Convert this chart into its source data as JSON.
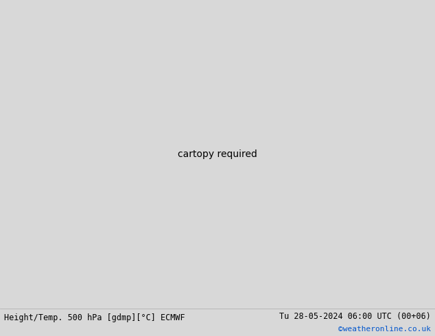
{
  "title_left": "Height/Temp. 500 hPa [gdmp][°C] ECMWF",
  "title_right": "Tu 28-05-2024 06:00 UTC (00+06)",
  "credit": "©weatheronline.co.uk",
  "land_color": "#c8e8a8",
  "sea_color": "#c8c8c8",
  "gray_land_color": "#b8b8b8",
  "contour_color": "#000000",
  "temp_green_color": "#90c830",
  "temp_orange_color": "#e07800",
  "temp_cyan_color": "#00b8d0",
  "bottom_bar_color": "#d8d8d8",
  "title_color": "#000000",
  "credit_color": "#0055cc",
  "fig_width": 6.34,
  "fig_height": 4.9,
  "dpi": 100
}
